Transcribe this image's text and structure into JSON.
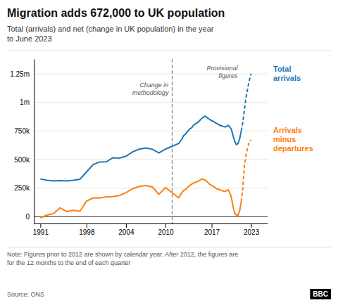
{
  "chart_data": {
    "type": "line",
    "title": "Migration adds 672,000 to UK population",
    "subtitle": "Total (arrivals) and net (change in UK population) in the year\nto June 2023",
    "note": "Note: Figures prior to 2012 are shown by calendar year. After 2012, the figures are\nfor the 12 months to the end of each quarter",
    "source": "Source: ONS",
    "logo": "BBC",
    "x": [
      1991,
      1992,
      1993,
      1994,
      1995,
      1996,
      1997,
      1998,
      1999,
      2000,
      2001,
      2002,
      2003,
      2004,
      2005,
      2006,
      2007,
      2008,
      2009,
      2010,
      2012.0,
      2012.25,
      2012.5,
      2012.75,
      2013.0,
      2013.25,
      2013.5,
      2013.75,
      2014.0,
      2014.25,
      2014.5,
      2014.75,
      2015.0,
      2015.25,
      2015.5,
      2015.75,
      2016.0,
      2016.25,
      2016.5,
      2016.75,
      2017.0,
      2017.25,
      2017.5,
      2017.75,
      2018.0,
      2018.25,
      2018.5,
      2018.75,
      2019.0,
      2019.25,
      2019.5,
      2019.75,
      2020.0,
      2020.25,
      2020.5,
      2020.75,
      2021.0,
      2021.25,
      2021.5,
      2021.75,
      2022.0,
      2022.25,
      2022.5,
      2022.75,
      2023.0
    ],
    "series": [
      {
        "name": "Total\narrivals",
        "values": [
          330000,
          318000,
          312000,
          315000,
          312000,
          318000,
          327000,
          391000,
          455000,
          479000,
          480000,
          516000,
          512000,
          529000,
          567000,
          591000,
          601000,
          590000,
          558000,
          591000,
          640000,
          660000,
          680000,
          710000,
          720000,
          740000,
          755000,
          770000,
          780000,
          800000,
          810000,
          820000,
          830000,
          845000,
          860000,
          870000,
          880000,
          870000,
          860000,
          850000,
          840000,
          835000,
          825000,
          815000,
          810000,
          800000,
          795000,
          790000,
          785000,
          790000,
          800000,
          785000,
          765000,
          710000,
          660000,
          630000,
          640000,
          680000,
          750000,
          830000,
          950000,
          1050000,
          1130000,
          1200000,
          1250000
        ]
      },
      {
        "name": "Arrivals\nminus\ndepartures",
        "values": [
          -11000,
          14000,
          27000,
          77000,
          44000,
          55000,
          46000,
          137000,
          163000,
          163000,
          172000,
          175000,
          185000,
          210000,
          245000,
          265000,
          272000,
          260000,
          195000,
          255000,
          165000,
          190000,
          210000,
          230000,
          235000,
          250000,
          265000,
          275000,
          285000,
          295000,
          300000,
          305000,
          310000,
          320000,
          330000,
          325000,
          320000,
          310000,
          295000,
          280000,
          275000,
          265000,
          255000,
          245000,
          240000,
          235000,
          230000,
          225000,
          220000,
          225000,
          235000,
          210000,
          170000,
          90000,
          30000,
          15000,
          10000,
          50000,
          130000,
          260000,
          450000,
          550000,
          610000,
          660000,
          672000
        ]
      }
    ],
    "xlim": [
      1990.0,
      2025.5
    ],
    "ylim": [
      -60000,
      1380000
    ],
    "xticks": [
      1991,
      1998,
      2004,
      2010,
      2017,
      2023
    ],
    "yticks": [
      0,
      {
        "value": 250000,
        "label": "250k"
      },
      {
        "value": 500000,
        "label": "500k"
      },
      {
        "value": 750000,
        "label": "750k"
      },
      {
        "value": 1000000,
        "label": "1m"
      },
      {
        "value": 1250000,
        "label": "1.25m"
      }
    ],
    "grid": true,
    "annotations": [
      {
        "text": "Change in\nmethodology",
        "x": 2011.0,
        "line_style": "dashed"
      }
    ],
    "provisional": {
      "label": "Provisional\nfigures",
      "x": 2021.5
    }
  }
}
